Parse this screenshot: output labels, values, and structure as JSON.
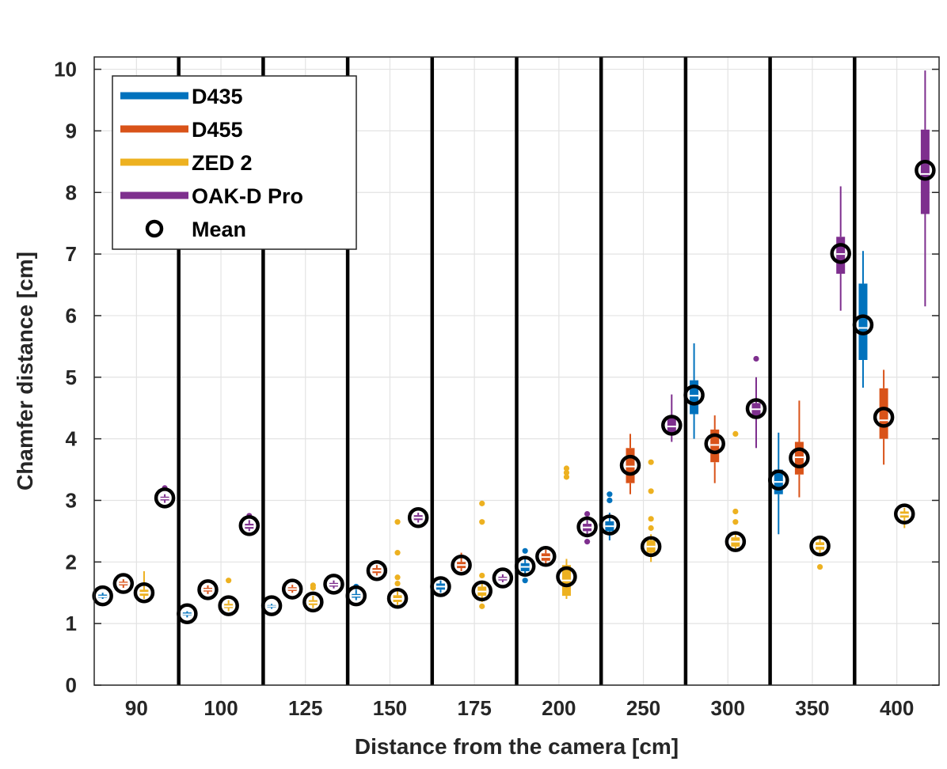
{
  "chart_data": {
    "type": "boxplot",
    "title": "",
    "xlabel": "Distance from the camera [cm]",
    "ylabel": "Chamfer distance [cm]",
    "ylim": [
      0,
      10.2
    ],
    "yticks": [
      0,
      1,
      2,
      3,
      4,
      5,
      6,
      7,
      8,
      9,
      10
    ],
    "grid": true,
    "legend_position": "top-left",
    "categories": [
      "90",
      "100",
      "125",
      "150",
      "175",
      "200",
      "250",
      "300",
      "350",
      "400"
    ],
    "legend": [
      {
        "label": "D435",
        "kind": "line",
        "color": "#0072BD"
      },
      {
        "label": "D455",
        "kind": "line",
        "color": "#D95319"
      },
      {
        "label": "ZED 2",
        "kind": "line",
        "color": "#EDB120"
      },
      {
        "label": "OAK-D Pro",
        "kind": "line",
        "color": "#7E2F8E"
      },
      {
        "label": "Mean",
        "kind": "circle",
        "color": "#000000"
      }
    ],
    "series": [
      {
        "name": "D435",
        "color": "#0072BD",
        "stats": [
          {
            "q1": 1.42,
            "median": 1.44,
            "q3": 1.47,
            "wlo": 1.4,
            "whi": 1.5,
            "mean": 1.45,
            "outliers": []
          },
          {
            "q1": 1.13,
            "median": 1.15,
            "q3": 1.18,
            "wlo": 1.1,
            "whi": 1.2,
            "mean": 1.16,
            "outliers": []
          },
          {
            "q1": 1.26,
            "median": 1.28,
            "q3": 1.3,
            "wlo": 1.24,
            "whi": 1.32,
            "mean": 1.29,
            "outliers": []
          },
          {
            "q1": 1.42,
            "median": 1.45,
            "q3": 1.48,
            "wlo": 1.38,
            "whi": 1.55,
            "mean": 1.45,
            "outliers": [
              1.6
            ]
          },
          {
            "q1": 1.55,
            "median": 1.6,
            "q3": 1.65,
            "wlo": 1.5,
            "whi": 1.7,
            "mean": 1.6,
            "outliers": []
          },
          {
            "q1": 1.85,
            "median": 1.92,
            "q3": 1.98,
            "wlo": 1.78,
            "whi": 2.05,
            "mean": 1.93,
            "outliers": [
              1.7,
              2.18
            ]
          },
          {
            "q1": 2.5,
            "median": 2.58,
            "q3": 2.66,
            "wlo": 2.35,
            "whi": 2.8,
            "mean": 2.6,
            "outliers": [
              3.0,
              3.1
            ]
          },
          {
            "q1": 4.4,
            "median": 4.7,
            "q3": 4.95,
            "wlo": 4.0,
            "whi": 5.55,
            "mean": 4.71,
            "outliers": []
          },
          {
            "q1": 3.1,
            "median": 3.3,
            "q3": 3.5,
            "wlo": 2.45,
            "whi": 4.1,
            "mean": 3.33,
            "outliers": []
          },
          {
            "q1": 5.28,
            "median": 5.8,
            "q3": 6.52,
            "wlo": 4.83,
            "whi": 7.05,
            "mean": 5.85,
            "outliers": []
          }
        ]
      },
      {
        "name": "D455",
        "color": "#D95319",
        "stats": [
          {
            "q1": 1.62,
            "median": 1.65,
            "q3": 1.68,
            "wlo": 1.58,
            "whi": 1.72,
            "mean": 1.65,
            "outliers": []
          },
          {
            "q1": 1.52,
            "median": 1.55,
            "q3": 1.58,
            "wlo": 1.48,
            "whi": 1.62,
            "mean": 1.55,
            "outliers": []
          },
          {
            "q1": 1.53,
            "median": 1.56,
            "q3": 1.59,
            "wlo": 1.5,
            "whi": 1.63,
            "mean": 1.56,
            "outliers": []
          },
          {
            "q1": 1.82,
            "median": 1.86,
            "q3": 1.9,
            "wlo": 1.78,
            "whi": 1.95,
            "mean": 1.86,
            "outliers": []
          },
          {
            "q1": 1.9,
            "median": 1.95,
            "q3": 2.0,
            "wlo": 1.85,
            "whi": 2.15,
            "mean": 1.95,
            "outliers": []
          },
          {
            "q1": 2.02,
            "median": 2.08,
            "q3": 2.14,
            "wlo": 1.95,
            "whi": 2.2,
            "mean": 2.09,
            "outliers": []
          },
          {
            "q1": 3.28,
            "median": 3.55,
            "q3": 3.85,
            "wlo": 3.1,
            "whi": 4.08,
            "mean": 3.57,
            "outliers": []
          },
          {
            "q1": 3.62,
            "median": 3.9,
            "q3": 4.15,
            "wlo": 3.28,
            "whi": 4.38,
            "mean": 3.92,
            "outliers": []
          },
          {
            "q1": 3.42,
            "median": 3.7,
            "q3": 3.95,
            "wlo": 3.05,
            "whi": 4.62,
            "mean": 3.69,
            "outliers": []
          },
          {
            "q1": 4.0,
            "median": 4.3,
            "q3": 4.82,
            "wlo": 3.58,
            "whi": 5.12,
            "mean": 4.35,
            "outliers": []
          }
        ]
      },
      {
        "name": "ZED 2",
        "color": "#EDB120",
        "stats": [
          {
            "q1": 1.45,
            "median": 1.5,
            "q3": 1.55,
            "wlo": 1.4,
            "whi": 1.85,
            "mean": 1.5,
            "outliers": []
          },
          {
            "q1": 1.25,
            "median": 1.28,
            "q3": 1.32,
            "wlo": 1.2,
            "whi": 1.38,
            "mean": 1.29,
            "outliers": [
              1.7
            ]
          },
          {
            "q1": 1.3,
            "median": 1.34,
            "q3": 1.38,
            "wlo": 1.25,
            "whi": 1.45,
            "mean": 1.35,
            "outliers": [
              1.58,
              1.62
            ]
          },
          {
            "q1": 1.35,
            "median": 1.4,
            "q3": 1.46,
            "wlo": 1.3,
            "whi": 1.55,
            "mean": 1.41,
            "outliers": [
              1.65,
              1.75,
              2.15,
              2.65
            ]
          },
          {
            "q1": 1.45,
            "median": 1.52,
            "q3": 1.6,
            "wlo": 1.35,
            "whi": 1.7,
            "mean": 1.53,
            "outliers": [
              1.28,
              1.78,
              2.65,
              2.95
            ]
          },
          {
            "q1": 1.45,
            "median": 1.7,
            "q3": 1.95,
            "wlo": 1.4,
            "whi": 2.05,
            "mean": 1.76,
            "outliers": [
              3.38,
              3.45,
              3.52
            ]
          },
          {
            "q1": 2.15,
            "median": 2.25,
            "q3": 2.35,
            "wlo": 2.0,
            "whi": 2.45,
            "mean": 2.25,
            "outliers": [
              2.55,
              2.7,
              3.15,
              3.62
            ]
          },
          {
            "q1": 2.25,
            "median": 2.33,
            "q3": 2.4,
            "wlo": 2.18,
            "whi": 2.48,
            "mean": 2.33,
            "outliers": [
              2.65,
              2.82,
              4.08
            ]
          },
          {
            "q1": 2.2,
            "median": 2.26,
            "q3": 2.32,
            "wlo": 2.12,
            "whi": 2.4,
            "mean": 2.26,
            "outliers": [
              1.92
            ]
          },
          {
            "q1": 2.72,
            "median": 2.77,
            "q3": 2.82,
            "wlo": 2.55,
            "whi": 2.88,
            "mean": 2.78,
            "outliers": []
          }
        ]
      },
      {
        "name": "OAK-D Pro",
        "color": "#7E2F8E",
        "stats": [
          {
            "q1": 3.0,
            "median": 3.03,
            "q3": 3.06,
            "wlo": 2.96,
            "whi": 3.1,
            "mean": 3.04,
            "outliers": [
              3.2
            ]
          },
          {
            "q1": 2.54,
            "median": 2.58,
            "q3": 2.62,
            "wlo": 2.5,
            "whi": 2.68,
            "mean": 2.59,
            "outliers": [
              2.75
            ]
          },
          {
            "q1": 1.6,
            "median": 1.63,
            "q3": 1.66,
            "wlo": 1.57,
            "whi": 1.7,
            "mean": 1.64,
            "outliers": []
          },
          {
            "q1": 2.68,
            "median": 2.72,
            "q3": 2.76,
            "wlo": 2.64,
            "whi": 2.8,
            "mean": 2.72,
            "outliers": []
          },
          {
            "q1": 1.7,
            "median": 1.73,
            "q3": 1.76,
            "wlo": 1.67,
            "whi": 1.8,
            "mean": 1.74,
            "outliers": []
          },
          {
            "q1": 2.5,
            "median": 2.56,
            "q3": 2.62,
            "wlo": 2.42,
            "whi": 2.68,
            "mean": 2.57,
            "outliers": [
              2.33,
              2.78
            ]
          },
          {
            "q1": 4.1,
            "median": 4.2,
            "q3": 4.35,
            "wlo": 3.95,
            "whi": 4.72,
            "mean": 4.22,
            "outliers": []
          },
          {
            "q1": 4.38,
            "median": 4.48,
            "q3": 4.58,
            "wlo": 3.85,
            "whi": 5.0,
            "mean": 4.49,
            "outliers": [
              5.3
            ]
          },
          {
            "q1": 6.68,
            "median": 7.0,
            "q3": 7.28,
            "wlo": 6.08,
            "whi": 8.1,
            "mean": 7.01,
            "outliers": []
          },
          {
            "q1": 7.65,
            "median": 8.3,
            "q3": 9.02,
            "wlo": 6.15,
            "whi": 9.98,
            "mean": 8.36,
            "outliers": []
          }
        ]
      }
    ]
  }
}
